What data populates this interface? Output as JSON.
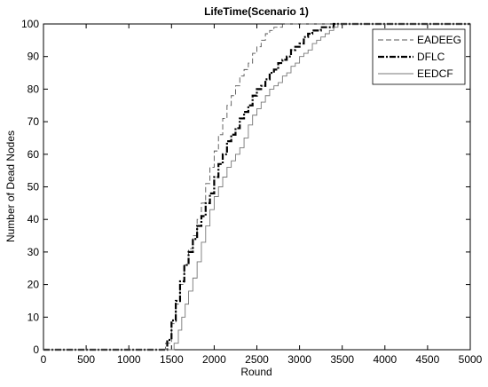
{
  "chart_data": {
    "type": "line",
    "title": "LifeTime(Scenario 1)",
    "xlabel": "Round",
    "ylabel": "Number of Dead Nodes",
    "xlim": [
      0,
      5000
    ],
    "ylim": [
      0,
      100
    ],
    "xticks": [
      0,
      500,
      1000,
      1500,
      2000,
      2500,
      3000,
      3500,
      4000,
      4500,
      5000
    ],
    "yticks": [
      0,
      10,
      20,
      30,
      40,
      50,
      60,
      70,
      80,
      90,
      100
    ],
    "grid": false,
    "legend_position": "top-right",
    "series": [
      {
        "name": "EADEEG",
        "color": "#555555",
        "line_style": "dashed",
        "x": [
          0,
          1380,
          1430,
          1500,
          1550,
          1600,
          1650,
          1700,
          1750,
          1800,
          1850,
          1900,
          1950,
          2000,
          2050,
          2100,
          2150,
          2200,
          2250,
          2300,
          2350,
          2400,
          2450,
          2500,
          2550,
          2600,
          2650,
          2700,
          2750,
          2800,
          2830,
          5000
        ],
        "y": [
          0,
          0,
          2,
          8,
          14,
          20,
          26,
          31,
          35,
          40,
          45,
          51,
          56,
          61,
          66,
          71,
          75,
          78,
          81,
          84,
          86,
          88,
          91,
          93,
          95,
          97,
          98,
          99,
          99,
          100,
          100,
          100
        ]
      },
      {
        "name": "DFLC",
        "color": "#000000",
        "line_style": "dashdot",
        "x": [
          0,
          1400,
          1450,
          1500,
          1550,
          1600,
          1650,
          1700,
          1750,
          1800,
          1850,
          1900,
          1950,
          2000,
          2050,
          2100,
          2150,
          2200,
          2250,
          2300,
          2350,
          2400,
          2450,
          2500,
          2550,
          2600,
          2650,
          2700,
          2750,
          2800,
          2850,
          2900,
          2950,
          3000,
          3050,
          3100,
          3150,
          3200,
          3250,
          3300,
          3350,
          3400,
          3450,
          5000
        ],
        "y": [
          0,
          0,
          3,
          9,
          15,
          21,
          26,
          30,
          34,
          38,
          41,
          45,
          48,
          53,
          57,
          60,
          64,
          66,
          68,
          71,
          73,
          75,
          78,
          80,
          81,
          83,
          85,
          86,
          88,
          89,
          90,
          92,
          93,
          94,
          96,
          97,
          98,
          98,
          99,
          99,
          99,
          100,
          100,
          100
        ]
      },
      {
        "name": "EEDCF",
        "color": "#777777",
        "line_style": "solid",
        "x": [
          0,
          1480,
          1530,
          1580,
          1620,
          1660,
          1700,
          1750,
          1800,
          1850,
          1900,
          1950,
          2000,
          2050,
          2100,
          2150,
          2200,
          2250,
          2300,
          2350,
          2400,
          2450,
          2500,
          2550,
          2600,
          2650,
          2700,
          2750,
          2800,
          2850,
          2900,
          2950,
          3000,
          3050,
          3100,
          3150,
          3200,
          3250,
          3300,
          3350,
          3400,
          3450,
          3500,
          5000
        ],
        "y": [
          0,
          0,
          2,
          6,
          10,
          14,
          18,
          22,
          27,
          33,
          38,
          43,
          47,
          50,
          53,
          56,
          58,
          60,
          62,
          65,
          69,
          72,
          74,
          76,
          78,
          80,
          81,
          82,
          84,
          85,
          87,
          88,
          90,
          91,
          92,
          94,
          95,
          96,
          97,
          98,
          99,
          100,
          100,
          100
        ]
      }
    ]
  }
}
